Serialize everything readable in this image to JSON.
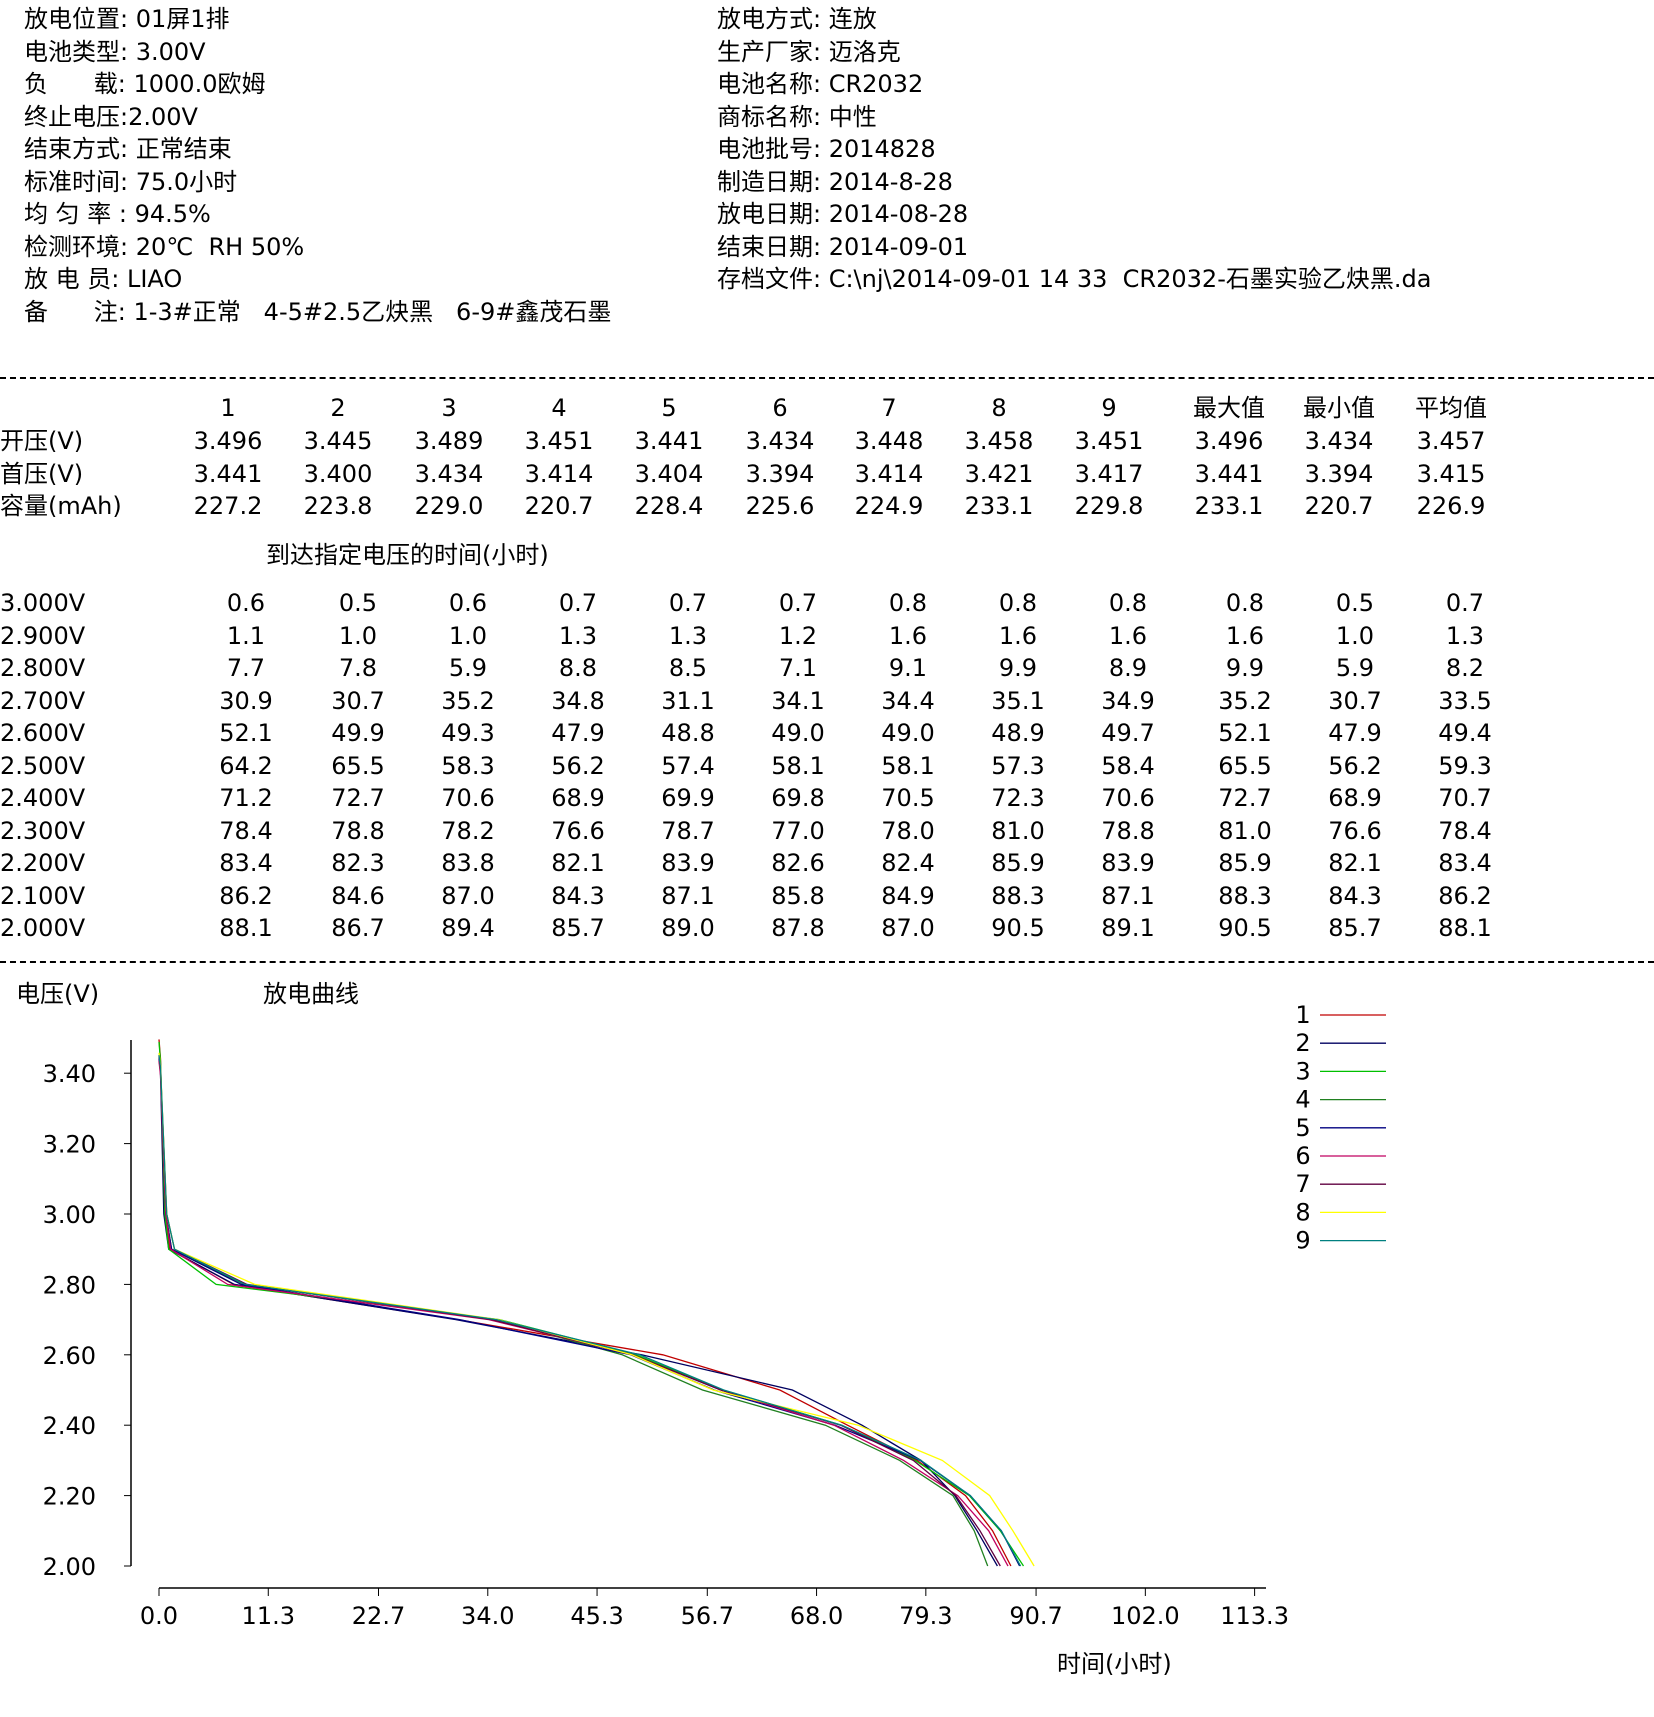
{
  "header": {
    "left": [
      "放电位置: 01屏1排",
      "电池类型: 3.00V",
      "负      载: 1000.0欧姆",
      "终止电压:2.00V",
      "结束方式: 正常结束",
      "标准时间: 75.0小时",
      "均 匀 率 : 94.5%",
      "检测环境: 20℃  RH 50%",
      "放 电 员: LIAO",
      "备      注: 1-3#正常   4-5#2.5乙炔黑   6-9#鑫茂石墨"
    ],
    "right": [
      "放电方式: 连放",
      "生产厂家: 迈洛克",
      "电池名称: CR2032",
      "商标名称: 中性",
      "电池批号: 2014828",
      "制造日期: 2014-8-28",
      "放电日期: 2014-08-28",
      "结束日期: 2014-09-01",
      "存档文件: C:\\nj\\2014-09-01 14 33  CR2032-石墨实验乙炔黑.da"
    ]
  },
  "summary": {
    "columns": [
      "1",
      "2",
      "3",
      "4",
      "5",
      "6",
      "7",
      "8",
      "9",
      "最大值",
      "最小值",
      "平均值"
    ],
    "rows": [
      {
        "label": "开压(V)",
        "values": [
          "3.496",
          "3.445",
          "3.489",
          "3.451",
          "3.441",
          "3.434",
          "3.448",
          "3.458",
          "3.451",
          "3.496",
          "3.434",
          "3.457"
        ]
      },
      {
        "label": "首压(V)",
        "values": [
          "3.441",
          "3.400",
          "3.434",
          "3.414",
          "3.404",
          "3.394",
          "3.414",
          "3.421",
          "3.417",
          "3.441",
          "3.394",
          "3.415"
        ]
      },
      {
        "label": "容量(mAh)",
        "values": [
          "227.2",
          "223.8",
          "229.0",
          "220.7",
          "228.4",
          "225.6",
          "224.9",
          "233.1",
          "229.8",
          "233.1",
          "220.7",
          "226.9"
        ]
      }
    ]
  },
  "time_table": {
    "title": "到达指定电压的时间(小时)",
    "rows": [
      {
        "label": "3.000V",
        "values": [
          "0.6",
          "0.5",
          "0.6",
          "0.7",
          "0.7",
          "0.7",
          "0.8",
          "0.8",
          "0.8",
          "0.8",
          "0.5",
          "0.7"
        ]
      },
      {
        "label": "2.900V",
        "values": [
          "1.1",
          "1.0",
          "1.0",
          "1.3",
          "1.3",
          "1.2",
          "1.6",
          "1.6",
          "1.6",
          "1.6",
          "1.0",
          "1.3"
        ]
      },
      {
        "label": "2.800V",
        "values": [
          "7.7",
          "7.8",
          "5.9",
          "8.8",
          "8.5",
          "7.1",
          "9.1",
          "9.9",
          "8.9",
          "9.9",
          "5.9",
          "8.2"
        ]
      },
      {
        "label": "2.700V",
        "values": [
          "30.9",
          "30.7",
          "35.2",
          "34.8",
          "31.1",
          "34.1",
          "34.4",
          "35.1",
          "34.9",
          "35.2",
          "30.7",
          "33.5"
        ]
      },
      {
        "label": "2.600V",
        "values": [
          "52.1",
          "49.9",
          "49.3",
          "47.9",
          "48.8",
          "49.0",
          "49.0",
          "48.9",
          "49.7",
          "52.1",
          "47.9",
          "49.4"
        ]
      },
      {
        "label": "2.500V",
        "values": [
          "64.2",
          "65.5",
          "58.3",
          "56.2",
          "57.4",
          "58.1",
          "58.1",
          "57.3",
          "58.4",
          "65.5",
          "56.2",
          "59.3"
        ]
      },
      {
        "label": "2.400V",
        "values": [
          "71.2",
          "72.7",
          "70.6",
          "68.9",
          "69.9",
          "69.8",
          "70.5",
          "72.3",
          "70.6",
          "72.7",
          "68.9",
          "70.7"
        ]
      },
      {
        "label": "2.300V",
        "values": [
          "78.4",
          "78.8",
          "78.2",
          "76.6",
          "78.7",
          "77.0",
          "78.0",
          "81.0",
          "78.8",
          "81.0",
          "76.6",
          "78.4"
        ]
      },
      {
        "label": "2.200V",
        "values": [
          "83.4",
          "82.3",
          "83.8",
          "82.1",
          "83.9",
          "82.6",
          "82.4",
          "85.9",
          "83.9",
          "85.9",
          "82.1",
          "83.4"
        ]
      },
      {
        "label": "2.100V",
        "values": [
          "86.2",
          "84.6",
          "87.0",
          "84.3",
          "87.1",
          "85.8",
          "84.9",
          "88.3",
          "87.1",
          "88.3",
          "84.3",
          "86.2"
        ]
      },
      {
        "label": "2.000V",
        "values": [
          "88.1",
          "86.7",
          "89.4",
          "85.7",
          "89.0",
          "87.8",
          "87.0",
          "90.5",
          "89.1",
          "90.5",
          "85.7",
          "88.1"
        ]
      }
    ]
  },
  "chart_data": {
    "type": "line",
    "title": "放电曲线",
    "ylabel": "电压(V)",
    "xlabel": "时间(小时)",
    "ylim": [
      2.0,
      3.5
    ],
    "xlim": [
      0,
      113.3
    ],
    "yticks": [
      "3.40",
      "3.20",
      "3.00",
      "2.80",
      "2.60",
      "2.40",
      "2.20",
      "2.00"
    ],
    "xticks": [
      "0.0",
      "11.3",
      "22.7",
      "34.0",
      "45.3",
      "56.7",
      "68.0",
      "79.3",
      "90.7",
      "102.0",
      "113.3"
    ],
    "grid": false,
    "legend_position": "top-right",
    "voltages": [
      3.0,
      2.9,
      2.8,
      2.7,
      2.6,
      2.5,
      2.4,
      2.3,
      2.2,
      2.1,
      2.0
    ],
    "series": [
      {
        "name": "1",
        "color": "#c00000",
        "open": 3.496,
        "first": 3.441,
        "times": [
          0.6,
          1.1,
          7.7,
          30.9,
          52.1,
          64.2,
          71.2,
          78.4,
          83.4,
          86.2,
          88.1
        ]
      },
      {
        "name": "2",
        "color": "#000060",
        "open": 3.445,
        "first": 3.4,
        "times": [
          0.5,
          1.0,
          7.8,
          30.7,
          49.9,
          65.5,
          72.7,
          78.8,
          82.3,
          84.6,
          86.7
        ]
      },
      {
        "name": "3",
        "color": "#00c000",
        "open": 3.489,
        "first": 3.434,
        "times": [
          0.6,
          1.0,
          5.9,
          35.2,
          49.3,
          58.3,
          70.6,
          78.2,
          83.8,
          87.0,
          89.4
        ]
      },
      {
        "name": "4",
        "color": "#208020",
        "open": 3.451,
        "first": 3.414,
        "times": [
          0.7,
          1.3,
          8.8,
          34.8,
          47.9,
          56.2,
          68.9,
          76.6,
          82.1,
          84.3,
          85.7
        ]
      },
      {
        "name": "5",
        "color": "#000080",
        "open": 3.441,
        "first": 3.404,
        "times": [
          0.7,
          1.3,
          8.5,
          31.1,
          48.8,
          57.4,
          69.9,
          78.7,
          83.9,
          87.1,
          89.0
        ]
      },
      {
        "name": "6",
        "color": "#c00060",
        "open": 3.434,
        "first": 3.394,
        "times": [
          0.7,
          1.2,
          7.1,
          34.1,
          49.0,
          58.1,
          69.8,
          77.0,
          82.6,
          85.8,
          87.8
        ]
      },
      {
        "name": "7",
        "color": "#600040",
        "open": 3.448,
        "first": 3.414,
        "times": [
          0.8,
          1.6,
          9.1,
          34.4,
          49.0,
          58.1,
          70.5,
          78.0,
          82.4,
          84.9,
          87.0
        ]
      },
      {
        "name": "8",
        "color": "#ffff00",
        "open": 3.458,
        "first": 3.421,
        "times": [
          0.8,
          1.6,
          9.9,
          35.1,
          48.9,
          57.3,
          72.3,
          81.0,
          85.9,
          88.3,
          90.5
        ]
      },
      {
        "name": "9",
        "color": "#008080",
        "open": 3.451,
        "first": 3.417,
        "times": [
          0.8,
          1.6,
          8.9,
          34.9,
          49.7,
          58.4,
          70.6,
          78.8,
          83.9,
          87.1,
          89.1
        ]
      }
    ]
  }
}
